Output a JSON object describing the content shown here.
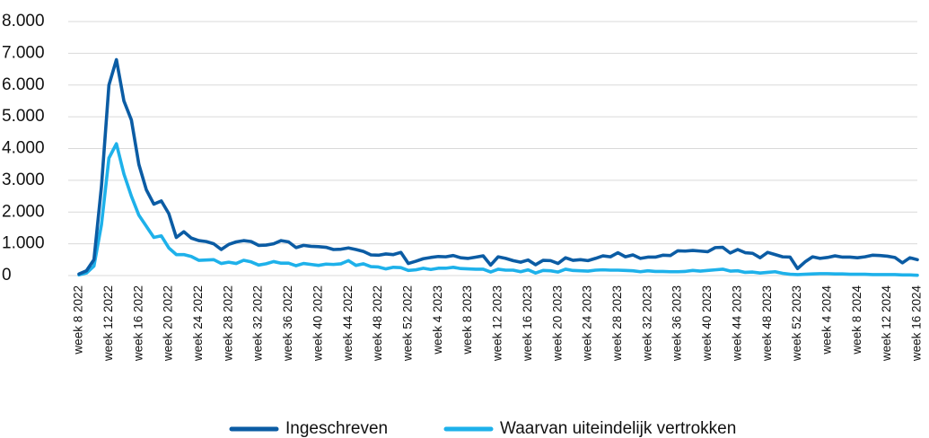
{
  "chart_data": {
    "type": "line",
    "categories": [
      "week 8 2022",
      null,
      null,
      null,
      "week 12 2022",
      null,
      null,
      null,
      "week 16 2022",
      null,
      null,
      null,
      "week 20 2022",
      null,
      null,
      null,
      "week 24 2022",
      null,
      null,
      null,
      "week 28 2022",
      null,
      null,
      null,
      "week 32 2022",
      null,
      null,
      null,
      "week 36 2022",
      null,
      null,
      null,
      "week 40 2022",
      null,
      null,
      null,
      "week 44 2022",
      null,
      null,
      null,
      "week 48 2022",
      null,
      null,
      null,
      "week 52 2022",
      null,
      null,
      null,
      "week 4 2023",
      null,
      null,
      null,
      "week 8 2023",
      null,
      null,
      null,
      "week 12 2023",
      null,
      null,
      null,
      "week 16 2023",
      null,
      null,
      null,
      "week 20 2023",
      null,
      null,
      null,
      "week 24 2023",
      null,
      null,
      null,
      "week 28 2023",
      null,
      null,
      null,
      "week 32 2023",
      null,
      null,
      null,
      "week 36 2023",
      null,
      null,
      null,
      "week 40 2023",
      null,
      null,
      null,
      "week 44 2023",
      null,
      null,
      null,
      "week 48 2023",
      null,
      null,
      null,
      "week 52 2023",
      null,
      null,
      null,
      "week 4 2024",
      null,
      null,
      null,
      "week 8 2024",
      null,
      null,
      null,
      "week 12 2024",
      null,
      null,
      null,
      "week 16 2024"
    ],
    "series": [
      {
        "name": "Ingeschreven",
        "color": "#0b5ca4",
        "values": [
          50,
          150,
          500,
          2800,
          6000,
          6800,
          5500,
          4900,
          3500,
          2700,
          2250,
          2350,
          1950,
          1200,
          1380,
          1180,
          1100,
          1070,
          1000,
          820,
          980,
          1060,
          1100,
          1070,
          950,
          960,
          1000,
          1100,
          1060,
          880,
          950,
          920,
          910,
          890,
          820,
          830,
          870,
          820,
          760,
          650,
          640,
          680,
          660,
          730,
          380,
          450,
          530,
          570,
          600,
          590,
          630,
          560,
          540,
          580,
          620,
          330,
          590,
          540,
          470,
          420,
          490,
          340,
          480,
          470,
          380,
          560,
          480,
          500,
          470,
          540,
          620,
          590,
          720,
          590,
          650,
          540,
          580,
          580,
          640,
          630,
          780,
          770,
          790,
          770,
          750,
          880,
          890,
          710,
          820,
          720,
          700,
          560,
          730,
          660,
          590,
          580,
          220,
          430,
          590,
          540,
          570,
          620,
          580,
          580,
          560,
          590,
          640,
          630,
          610,
          570,
          400,
          560,
          500
        ]
      },
      {
        "name": "Waarvan uiteindelijk vertrokken",
        "color": "#1eb1ea",
        "values": [
          20,
          80,
          300,
          1600,
          3700,
          4150,
          3200,
          2500,
          1900,
          1550,
          1200,
          1250,
          870,
          660,
          660,
          600,
          480,
          490,
          500,
          380,
          420,
          380,
          480,
          430,
          330,
          370,
          440,
          390,
          390,
          310,
          380,
          350,
          320,
          360,
          350,
          370,
          470,
          320,
          370,
          280,
          270,
          210,
          260,
          250,
          160,
          180,
          230,
          190,
          230,
          230,
          260,
          220,
          210,
          200,
          200,
          110,
          200,
          170,
          170,
          120,
          180,
          80,
          160,
          150,
          110,
          200,
          160,
          150,
          140,
          170,
          180,
          170,
          170,
          160,
          150,
          120,
          150,
          130,
          130,
          120,
          120,
          130,
          160,
          140,
          160,
          180,
          200,
          140,
          150,
          100,
          110,
          80,
          100,
          120,
          70,
          40,
          30,
          40,
          50,
          60,
          60,
          50,
          50,
          40,
          40,
          40,
          30,
          30,
          30,
          30,
          20,
          20,
          10
        ]
      }
    ],
    "ylim": [
      0,
      8000
    ],
    "yticks": [
      0,
      {
        "value": 1000,
        "label": "1.000"
      },
      {
        "value": 2000,
        "label": "2.000"
      },
      {
        "value": 3000,
        "label": "3.000"
      },
      {
        "value": 4000,
        "label": "4.000"
      },
      {
        "value": 5000,
        "label": "5.000"
      },
      {
        "value": 6000,
        "label": "6.000"
      },
      {
        "value": 7000,
        "label": "7.000"
      },
      {
        "value": 8000,
        "label": "8.000"
      }
    ],
    "grid": true,
    "legend": "bottom"
  }
}
